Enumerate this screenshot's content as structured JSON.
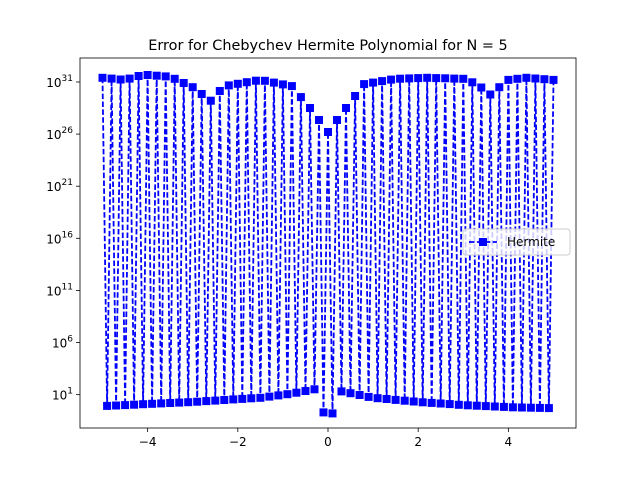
{
  "chart_data": {
    "type": "line",
    "title": "Error for Chebychev Hermite Polynomial for N = 5",
    "xlabel": "",
    "ylabel": "",
    "xlim": [
      -5.5,
      5.5
    ],
    "y_scale": "log",
    "ylim_log10": [
      -2.2,
      33.3
    ],
    "x_ticks": [
      -4,
      -2,
      0,
      2,
      4
    ],
    "x_tick_labels": [
      "−4",
      "−2",
      "0",
      "2",
      "4"
    ],
    "y_ticks_log10": [
      1,
      6,
      11,
      16,
      21,
      26,
      31
    ],
    "y_tick_labels": [
      {
        "base": "10",
        "exp": "1"
      },
      {
        "base": "10",
        "exp": "6"
      },
      {
        "base": "10",
        "exp": "11"
      },
      {
        "base": "10",
        "exp": "16"
      },
      {
        "base": "10",
        "exp": "21"
      },
      {
        "base": "10",
        "exp": "26"
      },
      {
        "base": "10",
        "exp": "31"
      }
    ],
    "grid": false,
    "legend_position": "center-right",
    "series": [
      {
        "name": "Hermite",
        "color": "#0000ff",
        "linestyle": "dashed",
        "marker": "square",
        "domain": [
          -5,
          5
        ],
        "num_points": 101,
        "upper_envelope_log10": {
          "x": [
            -5,
            -4.5,
            -4.1,
            -3.5,
            -3,
            -2.6,
            -2.3,
            -1.5,
            -0.8,
            -0.4,
            0,
            0.4,
            0.8,
            1.5,
            2.2,
            3,
            3.3,
            3.6,
            4,
            4.4,
            5
          ],
          "y": [
            31.4,
            31.2,
            31.7,
            31.5,
            30.5,
            29.2,
            30.6,
            31.2,
            30.6,
            28.5,
            26.2,
            28.5,
            30.8,
            31.3,
            31.4,
            31.3,
            30.8,
            29.8,
            31.2,
            31.4,
            31.2
          ]
        },
        "lower_envelope_log10": {
          "x": [
            -5,
            -3,
            -1.5,
            -0.8,
            -0.2,
            0,
            0.2,
            1,
            2,
            3,
            4,
            5
          ],
          "y": [
            -0.1,
            0.3,
            0.7,
            1.1,
            1.6,
            -3,
            1.4,
            0.7,
            0.3,
            0.0,
            -0.2,
            -0.3
          ]
        }
      }
    ]
  }
}
